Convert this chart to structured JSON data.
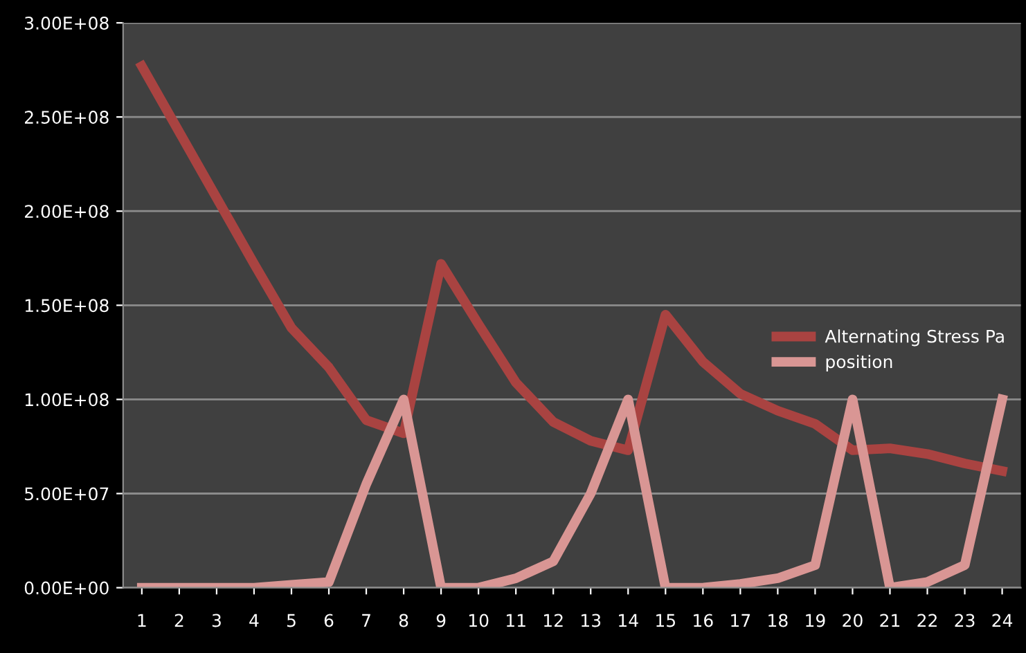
{
  "chart_data": {
    "type": "line",
    "categories": [
      "1",
      "2",
      "3",
      "4",
      "5",
      "6",
      "7",
      "8",
      "9",
      "10",
      "11",
      "12",
      "13",
      "14",
      "15",
      "16",
      "17",
      "18",
      "19",
      "20",
      "21",
      "22",
      "23",
      "24"
    ],
    "series": [
      {
        "name": "Alternating Stress Pa",
        "color": "#a94341",
        "values": [
          277000000,
          242000000,
          207000000,
          172000000,
          138000000,
          117000000,
          89000000,
          82000000,
          172000000,
          140000000,
          109000000,
          88000000,
          78000000,
          73000000,
          145000000,
          120000000,
          103000000,
          94000000,
          87000000,
          73000000,
          74000000,
          71000000,
          66000000,
          62000000
        ]
      },
      {
        "name": "position",
        "color": "#d99694",
        "values": [
          0,
          0,
          0,
          0,
          1500000,
          3000000,
          55000000,
          100000000,
          0,
          0,
          5000000,
          14000000,
          50000000,
          100000000,
          0,
          0,
          2000000,
          5000000,
          12000000,
          100000000,
          0,
          3000000,
          12000000,
          100000000
        ]
      }
    ],
    "ylim": [
      0,
      300000000
    ],
    "yticks": [
      {
        "value": 0,
        "label": "0.00E+00"
      },
      {
        "value": 50000000,
        "label": "5.00E+07"
      },
      {
        "value": 100000000,
        "label": "1.00E+08"
      },
      {
        "value": 150000000,
        "label": "1.50E+08"
      },
      {
        "value": 200000000,
        "label": "2.00E+08"
      },
      {
        "value": 250000000,
        "label": "2.50E+08"
      },
      {
        "value": 300000000,
        "label": "3.00E+08"
      }
    ],
    "grid": "y",
    "legend": "right",
    "marker": "none",
    "line_style": "solid"
  }
}
